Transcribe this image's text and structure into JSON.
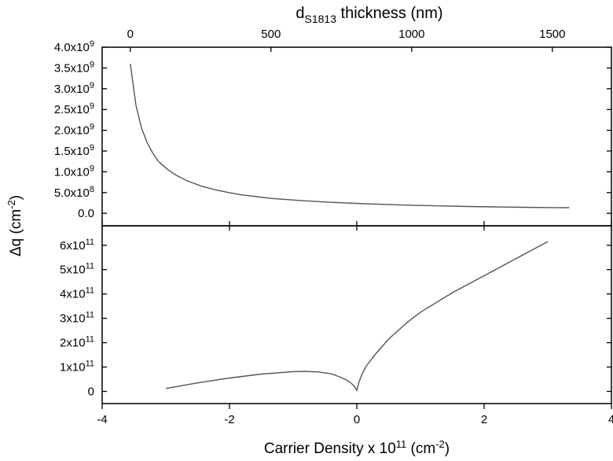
{
  "chart_data": [
    {
      "type": "line",
      "panel": "top",
      "top_axis": {
        "label_main": "d",
        "label_sub": "S1813",
        "label_rest": " thickness (nm)",
        "ticks": [
          0,
          500,
          1000,
          1500
        ],
        "tick_labels": [
          "0",
          "500",
          "1000",
          "1500"
        ],
        "range": [
          -100,
          1710
        ]
      },
      "ylim": [
        -300000000.0,
        4000000000.0
      ],
      "yticks": [
        0,
        500000000.0,
        1000000000.0,
        1500000000.0,
        2000000000.0,
        2500000000.0,
        3000000000.0,
        3500000000.0,
        4000000000.0
      ],
      "ytick_labels": [
        {
          "mant": "0.0",
          "exp": ""
        },
        {
          "mant": "5.0x10",
          "exp": "8"
        },
        {
          "mant": "1.0x10",
          "exp": "9"
        },
        {
          "mant": "1.5x10",
          "exp": "9"
        },
        {
          "mant": "2.0x10",
          "exp": "9"
        },
        {
          "mant": "2.5x10",
          "exp": "9"
        },
        {
          "mant": "3.0x10",
          "exp": "9"
        },
        {
          "mant": "3.5x10",
          "exp": "9"
        },
        {
          "mant": "4.0x10",
          "exp": "9"
        }
      ],
      "series": [
        {
          "color": "#555555",
          "x": [
            0,
            20,
            40,
            60,
            80,
            100,
            130,
            160,
            200,
            250,
            300,
            350,
            400,
            450,
            500,
            600,
            700,
            800,
            900,
            1000,
            1100,
            1200,
            1300,
            1400,
            1500,
            1560
          ],
          "y": [
            3600000000.0,
            2600000000.0,
            2050000000.0,
            1700000000.0,
            1450000000.0,
            1250000000.0,
            1070000000.0,
            930000000.0,
            790000000.0,
            660000000.0,
            570000000.0,
            500000000.0,
            440000000.0,
            400000000.0,
            360000000.0,
            310000000.0,
            270000000.0,
            240000000.0,
            215000000.0,
            195000000.0,
            180000000.0,
            165000000.0,
            155000000.0,
            145000000.0,
            138000000.0,
            135000000.0
          ]
        }
      ]
    },
    {
      "type": "line",
      "panel": "bottom",
      "ylim": [
        -50000000000.0,
        680000000000.0
      ],
      "yticks": [
        0,
        100000000000.0,
        200000000000.0,
        300000000000.0,
        400000000000.0,
        500000000000.0,
        600000000000.0
      ],
      "ytick_labels": [
        {
          "mant": "0",
          "exp": ""
        },
        {
          "mant": "1x10",
          "exp": "11"
        },
        {
          "mant": "2x10",
          "exp": "11"
        },
        {
          "mant": "3x10",
          "exp": "11"
        },
        {
          "mant": "4x10",
          "exp": "11"
        },
        {
          "mant": "5x10",
          "exp": "11"
        },
        {
          "mant": "6x10",
          "exp": "11"
        }
      ],
      "xlim": [
        -4,
        4
      ],
      "xticks": [
        -4,
        -2,
        0,
        2,
        4
      ],
      "xtick_labels": [
        "-4",
        "-2",
        "0",
        "2",
        "4"
      ],
      "xlabel_main": "Carrier Density x 10",
      "xlabel_exp": "11",
      "xlabel_unit": " (cm",
      "xlabel_unit_exp": "-2",
      "xlabel_close": ")",
      "series": [
        {
          "color": "#555555",
          "x": [
            -3.0,
            -2.5,
            -2.0,
            -1.5,
            -1.0,
            -0.8,
            -0.6,
            -0.4,
            -0.25,
            -0.15,
            -0.08,
            -0.03,
            0.0,
            0.03,
            0.08,
            0.15,
            0.3,
            0.5,
            0.8,
            1.0,
            1.5,
            2.0,
            2.5,
            3.0
          ],
          "y": [
            12000000000.0,
            35000000000.0,
            55000000000.0,
            71000000000.0,
            81000000000.0,
            82000000000.0,
            80000000000.0,
            72000000000.0,
            58000000000.0,
            45000000000.0,
            32000000000.0,
            18000000000.0,
            4000000000.0,
            35000000000.0,
            70000000000.0,
            105000000000.0,
            155000000000.0,
            215000000000.0,
            285000000000.0,
            325000000000.0,
            405000000000.0,
            475000000000.0,
            545000000000.0,
            615000000000.0
          ]
        }
      ]
    }
  ],
  "shared_ylabel": {
    "main": "Δq (cm",
    "exp": "-2",
    "close": ")"
  }
}
